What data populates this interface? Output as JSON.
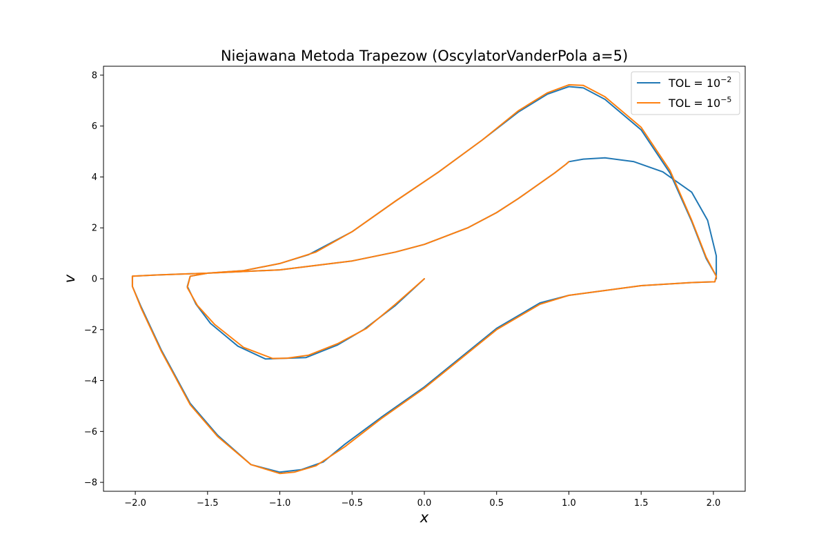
{
  "chart_data": {
    "type": "line",
    "title": "Niejawana Metoda Trapezow (OscylatorVanderPola a=5)",
    "xlabel": "x",
    "ylabel": "v",
    "xlim": [
      -2.22,
      2.22
    ],
    "ylim": [
      -8.35,
      8.35
    ],
    "xticks": [
      -2.0,
      -1.5,
      -1.0,
      -0.5,
      0.0,
      0.5,
      1.0,
      1.5,
      2.0
    ],
    "xtick_labels": [
      "−2.0",
      "−1.5",
      "−1.0",
      "−0.5",
      "0.0",
      "0.5",
      "1.0",
      "1.5",
      "2.0"
    ],
    "yticks": [
      -8,
      -6,
      -4,
      -2,
      0,
      2,
      4,
      6,
      8
    ],
    "ytick_labels": [
      "−8",
      "−6",
      "−4",
      "−2",
      "0",
      "2",
      "4",
      "6",
      "8"
    ],
    "grid": false,
    "legend_position": "top-right",
    "colors": {
      "series_1": "#1f77b4",
      "series_2": "#ff7f0e"
    },
    "series": [
      {
        "name_prefix": "TOL = 10",
        "name_exponent": "−2",
        "color": "#1f77b4",
        "x": [
          0.0,
          -0.2,
          -0.42,
          -0.6,
          -0.82,
          -1.0,
          -1.1,
          -1.29,
          -1.48,
          -1.58,
          -1.64,
          -1.62,
          -1.5,
          -1.25,
          -1.0,
          -0.8,
          -0.5,
          -0.2,
          0.1,
          0.4,
          0.65,
          0.85,
          1.0,
          1.1,
          1.25,
          1.5,
          1.7,
          1.85,
          1.95,
          2.02,
          2.01,
          1.85,
          1.5,
          1.0,
          0.8,
          0.5,
          0.25,
          0.0,
          -0.3,
          -0.55,
          -0.7,
          -0.85,
          -1.0,
          -1.2,
          -1.43,
          -1.62,
          -1.82,
          -1.96,
          -2.02,
          -2.02,
          -1.85,
          -1.5,
          -1.0,
          -0.5,
          -0.2,
          0.0,
          0.3,
          0.5,
          0.65,
          0.75,
          0.9,
          0.98,
          1.0,
          1.1,
          1.25,
          1.45,
          1.65,
          1.85,
          1.96,
          2.02,
          2.02
        ],
        "y": [
          0.0,
          -1.05,
          -2.0,
          -2.6,
          -3.1,
          -3.13,
          -3.15,
          -2.65,
          -1.75,
          -1.0,
          -0.3,
          0.1,
          0.22,
          0.32,
          0.6,
          0.95,
          1.85,
          3.05,
          4.2,
          5.45,
          6.55,
          7.25,
          7.55,
          7.5,
          7.05,
          5.85,
          4.15,
          2.25,
          0.8,
          0.1,
          -0.12,
          -0.15,
          -0.27,
          -0.65,
          -0.95,
          -1.95,
          -3.1,
          -4.25,
          -5.45,
          -6.5,
          -7.2,
          -7.5,
          -7.6,
          -7.3,
          -6.15,
          -4.9,
          -2.8,
          -1.1,
          -0.3,
          0.1,
          0.15,
          0.22,
          0.35,
          0.7,
          1.05,
          1.35,
          2.0,
          2.6,
          3.15,
          3.55,
          4.15,
          4.5,
          4.6,
          4.7,
          4.75,
          4.6,
          4.2,
          3.4,
          2.3,
          0.9,
          0.0
        ]
      },
      {
        "name_prefix": "TOL = 10",
        "name_exponent": "−5",
        "color": "#ff7f0e",
        "x": [
          0.0,
          -0.2,
          -0.4,
          -0.6,
          -0.8,
          -0.95,
          -1.05,
          -1.25,
          -1.45,
          -1.57,
          -1.64,
          -1.62,
          -1.5,
          -1.25,
          -1.0,
          -0.75,
          -0.5,
          -0.2,
          0.1,
          0.4,
          0.65,
          0.85,
          1.0,
          1.1,
          1.25,
          1.5,
          1.7,
          1.85,
          1.95,
          2.02,
          2.01,
          1.85,
          1.5,
          1.0,
          0.8,
          0.5,
          0.25,
          0.0,
          -0.3,
          -0.55,
          -0.75,
          -0.9,
          -1.0,
          -1.2,
          -1.43,
          -1.62,
          -1.82,
          -1.96,
          -2.02,
          -2.02,
          -1.85,
          -1.5,
          -1.0,
          -0.5,
          -0.2,
          0.0,
          0.3,
          0.5,
          0.65,
          0.75,
          0.9,
          0.98,
          1.0
        ],
        "y": [
          0.0,
          -1.0,
          -1.95,
          -2.55,
          -3.0,
          -3.12,
          -3.13,
          -2.7,
          -1.8,
          -1.05,
          -0.35,
          0.1,
          0.22,
          0.32,
          0.6,
          1.05,
          1.85,
          3.05,
          4.2,
          5.45,
          6.6,
          7.3,
          7.62,
          7.6,
          7.15,
          5.95,
          4.25,
          2.3,
          0.85,
          0.1,
          -0.12,
          -0.15,
          -0.27,
          -0.65,
          -1.0,
          -2.0,
          -3.15,
          -4.3,
          -5.5,
          -6.6,
          -7.35,
          -7.6,
          -7.65,
          -7.3,
          -6.2,
          -4.95,
          -2.85,
          -1.15,
          -0.3,
          0.1,
          0.15,
          0.22,
          0.35,
          0.7,
          1.05,
          1.35,
          2.0,
          2.6,
          3.15,
          3.55,
          4.15,
          4.5,
          4.6
        ]
      }
    ]
  }
}
